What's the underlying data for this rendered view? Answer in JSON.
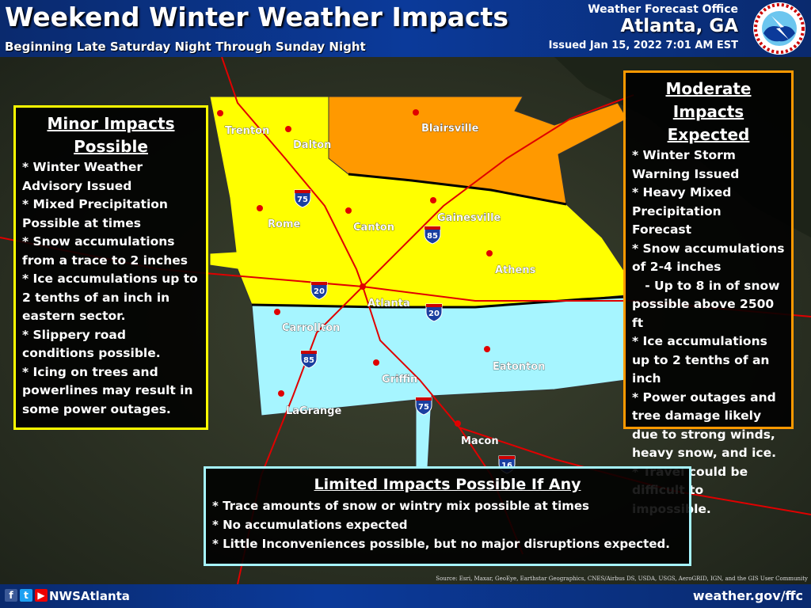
{
  "header": {
    "title": "Weekend Winter Weather Impacts",
    "subtitle": "Beginning Late Saturday Night Through Sunday Night",
    "office": "Weather Forecast Office",
    "city": "Atlanta, GA",
    "issued": "Issued Jan 15, 2022 7:01 AM EST",
    "logo_text": "NATIONAL WEATHER SERVICE"
  },
  "colors": {
    "moderate": "#ff9900",
    "minor": "#ffff00",
    "limited": "#a6f5ff",
    "header": "#0b3a9a",
    "city_dot": "#e00000",
    "roads": "#e00000"
  },
  "cities": [
    {
      "name": "Trenton"
    },
    {
      "name": "Dalton"
    },
    {
      "name": "Blairsville"
    },
    {
      "name": "Rome"
    },
    {
      "name": "Canton"
    },
    {
      "name": "Gainesville"
    },
    {
      "name": "Athens"
    },
    {
      "name": "Atlanta"
    },
    {
      "name": "Carrollton"
    },
    {
      "name": "Griffin"
    },
    {
      "name": "Eatonton"
    },
    {
      "name": "LaGrange"
    },
    {
      "name": "Macon"
    }
  ],
  "interstates": [
    "75",
    "85",
    "20",
    "20",
    "85",
    "75",
    "16"
  ],
  "minor": {
    "title": "Minor Impacts Possible",
    "lines": [
      "* Winter Weather Advisory Issued",
      "* Mixed Precipitation Possible at times",
      "* Snow accumulations from a trace to 2 inches",
      "* Ice accumulations up to 2 tenths of an inch in eastern sector.",
      "* Slippery road conditions possible.",
      "* Icing on trees and powerlines may result in some power outages."
    ]
  },
  "moderate": {
    "title": "Moderate Impacts Expected",
    "lines": [
      "* Winter Storm Warning Issued",
      "* Heavy Mixed Precipitation Forecast",
      "* Snow accumulations of 2-4 inches",
      "   - Up to 8 in of snow possible above 2500 ft",
      "* Ice accumulations up to 2 tenths of an inch",
      "* Power outages and tree damage likely due to strong winds, heavy snow, and ice.",
      "* Travel could be difficult to impossible."
    ]
  },
  "limited": {
    "title": "Limited Impacts Possible If Any",
    "lines": [
      "* Trace amounts of snow or wintry mix possible at times",
      "* No accumulations expected",
      "* Little Inconveniences possible, but no major disruptions expected."
    ]
  },
  "source": "Source: Esri, Maxar, GeoEye, Earthstar Geographics, CNES/Airbus DS, USDA, USGS, AeroGRID, IGN, and the GIS User Community",
  "footer": {
    "handle": "NWSAtlanta",
    "site": "weather.gov/ffc",
    "social_icons": [
      "facebook-icon",
      "twitter-icon",
      "youtube-icon"
    ]
  }
}
